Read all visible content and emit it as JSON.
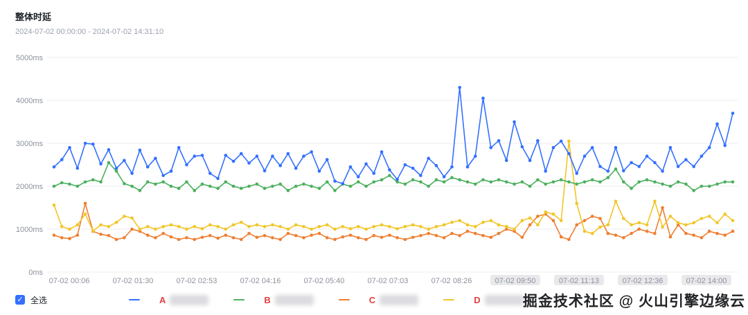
{
  "header": {
    "title": "整体时延",
    "time_range": "2024-07-02 00:00:00 - 2024-07-02 14:31:10"
  },
  "chart_data": {
    "type": "line",
    "title": "整体时延",
    "ylabel": "latency",
    "unit": "ms",
    "ylim": [
      0,
      5000
    ],
    "grid": "horizontal",
    "y_tick_values": [
      5000,
      4000,
      3000,
      2000,
      1000,
      0
    ],
    "y_ticks": [
      "5000ms",
      "4000ms",
      "3000ms",
      "2000ms",
      "1000ms",
      "0ms"
    ],
    "x_tick_labels": [
      "07-02 00:06",
      "07-02 01:30",
      "07-02 02:53",
      "07-02 04:16",
      "07-02 05:40",
      "07-02 07:03",
      "07-02 08:26",
      "07-02 09:50",
      "07-02 11:13",
      "07-02 12:36",
      "07-02 14:00"
    ],
    "series": [
      {
        "name": "A",
        "color": "#3370ff",
        "values": [
          2450,
          2620,
          2900,
          2420,
          3000,
          2980,
          2520,
          2850,
          2420,
          2600,
          2300,
          2840,
          2450,
          2650,
          2250,
          2350,
          2900,
          2500,
          2700,
          2720,
          2300,
          2180,
          2720,
          2580,
          2760,
          2540,
          2700,
          2360,
          2700,
          2480,
          2760,
          2420,
          2700,
          2800,
          2350,
          2620,
          2120,
          2060,
          2450,
          2220,
          2520,
          2300,
          2800,
          2380,
          2160,
          2500,
          2420,
          2250,
          2650,
          2480,
          2220,
          2450,
          4300,
          2450,
          2700,
          4050,
          2900,
          3060,
          2600,
          3500,
          2920,
          2600,
          3060,
          2350,
          2900,
          3050,
          2760,
          2300,
          2700,
          2900,
          2460,
          2350,
          2900,
          2360,
          2550,
          2460,
          2700,
          2550,
          2350,
          2900,
          2460,
          2620,
          2460,
          2700,
          2900,
          3450,
          2950,
          3700
        ]
      },
      {
        "name": "B",
        "color": "#4cb05e",
        "values": [
          2000,
          2080,
          2050,
          2000,
          2100,
          2150,
          2100,
          2550,
          2350,
          2060,
          2000,
          1900,
          2100,
          2050,
          2100,
          2000,
          1950,
          2100,
          1900,
          2050,
          2000,
          1950,
          2100,
          2000,
          1950,
          2000,
          2050,
          1950,
          2000,
          2050,
          1900,
          2000,
          2050,
          2000,
          1950,
          2100,
          1900,
          2050,
          2000,
          2100,
          2000,
          2100,
          2150,
          2250,
          2100,
          2050,
          2150,
          2100,
          2000,
          2150,
          2100,
          2200,
          2150,
          2100,
          2050,
          2150,
          2100,
          2150,
          2100,
          2050,
          2100,
          2000,
          2150,
          2050,
          2100,
          2150,
          2100,
          2050,
          2100,
          2150,
          2100,
          2200,
          2400,
          2100,
          1950,
          2100,
          2150,
          2100,
          2050,
          2000,
          2100,
          2050,
          1900,
          2000,
          2000,
          2050,
          2100,
          2100
        ]
      },
      {
        "name": "C",
        "color": "#ee7e30",
        "values": [
          860,
          800,
          780,
          860,
          1600,
          950,
          880,
          850,
          760,
          800,
          1000,
          950,
          860,
          800,
          900,
          820,
          760,
          800,
          760,
          810,
          850,
          790,
          860,
          800,
          760,
          900,
          810,
          850,
          800,
          760,
          900,
          850,
          800,
          860,
          900,
          800,
          760,
          820,
          860,
          800,
          760,
          850,
          810,
          860,
          800,
          760,
          810,
          850,
          900,
          850,
          800,
          900,
          850,
          950,
          900,
          850,
          810,
          900,
          1000,
          950,
          810,
          1100,
          1300,
          1350,
          1200,
          820,
          760,
          1100,
          1200,
          1300,
          1250,
          900,
          860,
          800,
          900,
          1000,
          950,
          900,
          1500,
          820,
          1100,
          900,
          860,
          800,
          950,
          900,
          860,
          950
        ]
      },
      {
        "name": "D",
        "color": "#f2c528",
        "values": [
          1560,
          1060,
          1000,
          1100,
          1350,
          960,
          1100,
          1060,
          1160,
          1300,
          1260,
          1000,
          1060,
          1000,
          1060,
          1100,
          1060,
          1000,
          1060,
          1010,
          1100,
          1060,
          1000,
          1100,
          1160,
          1060,
          1100,
          1060,
          1100,
          1060,
          1000,
          1100,
          1060,
          1000,
          1060,
          1100,
          1000,
          1060,
          1010,
          1060,
          1000,
          1060,
          1100,
          1060,
          1010,
          1060,
          1100,
          1060,
          1000,
          1060,
          1100,
          1160,
          1200,
          1100,
          1060,
          1160,
          1200,
          1100,
          1060,
          1000,
          1200,
          1260,
          1100,
          1400,
          1350,
          1200,
          3050,
          1600,
          950,
          900,
          1050,
          1100,
          1650,
          1250,
          1100,
          1150,
          1100,
          1650,
          1050,
          1300,
          1150,
          1100,
          1150,
          1250,
          1300,
          1150,
          1350,
          1200
        ]
      }
    ]
  },
  "legend": {
    "select_all_label": "全选",
    "letter_color": "#e03e3e",
    "items": [
      {
        "letter": "A"
      },
      {
        "letter": "B"
      },
      {
        "letter": "C"
      },
      {
        "letter": "D"
      }
    ]
  },
  "watermark": "掘金技术社区 @ 火山引擎边缘云"
}
